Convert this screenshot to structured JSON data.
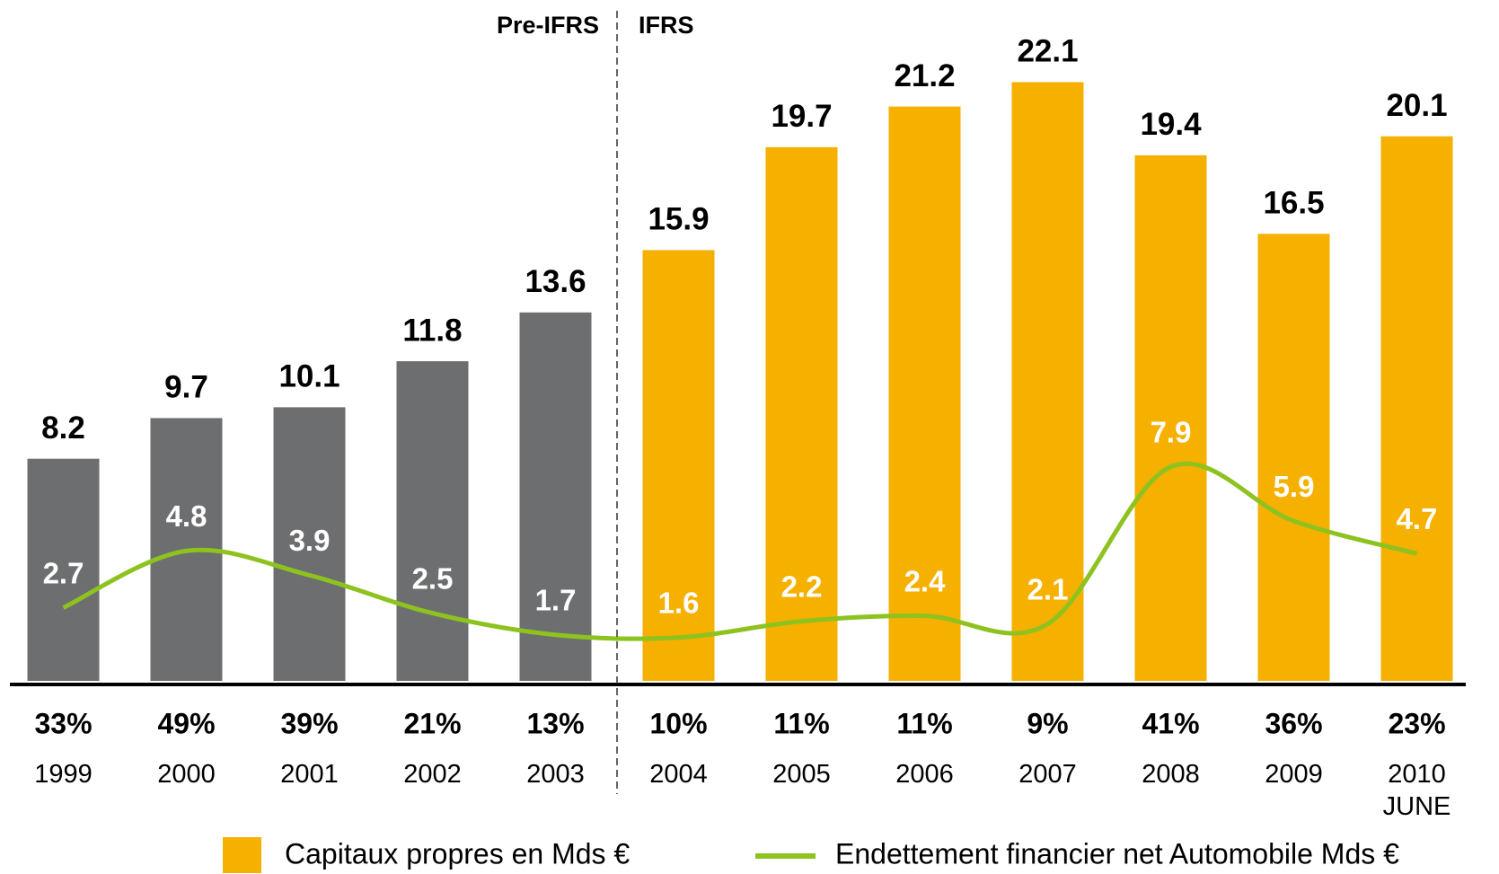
{
  "chart_data": {
    "type": "bar",
    "categories": [
      "1999",
      "2000",
      "2001",
      "2002",
      "2003",
      "2004",
      "2005",
      "2006",
      "2007",
      "2008",
      "2009",
      "2010\nJUNE"
    ],
    "annotations": [
      "Pre-IFRS",
      "IFRS"
    ],
    "ylim": [
      0,
      25
    ],
    "series": [
      {
        "name": "Capitaux propres en Mds €",
        "type": "bar",
        "color": "#f5b000",
        "colors": [
          "#6d6e70",
          "#6d6e70",
          "#6d6e70",
          "#6d6e70",
          "#6d6e70",
          "#f5b000",
          "#f5b000",
          "#f5b000",
          "#f5b000",
          "#f5b000",
          "#f5b000",
          "#f5b000"
        ],
        "values": [
          8.2,
          9.7,
          10.1,
          11.8,
          13.6,
          15.9,
          19.7,
          21.2,
          22.1,
          19.4,
          16.5,
          20.1
        ]
      },
      {
        "name": "Endettement financier net Automobile Mds €",
        "type": "line",
        "color": "#8dc21f",
        "values": [
          2.7,
          4.8,
          3.9,
          2.5,
          1.7,
          1.6,
          2.2,
          2.4,
          2.1,
          7.9,
          5.9,
          4.7
        ]
      }
    ],
    "ratio": {
      "values": [
        33,
        49,
        39,
        21,
        13,
        10,
        11,
        11,
        9,
        41,
        36,
        23
      ],
      "value_labels": [
        "33%",
        "49%",
        "39%",
        "21%",
        "13%",
        "10%",
        "11%",
        "11%",
        "9%",
        "41%",
        "36%",
        "23%"
      ]
    }
  }
}
